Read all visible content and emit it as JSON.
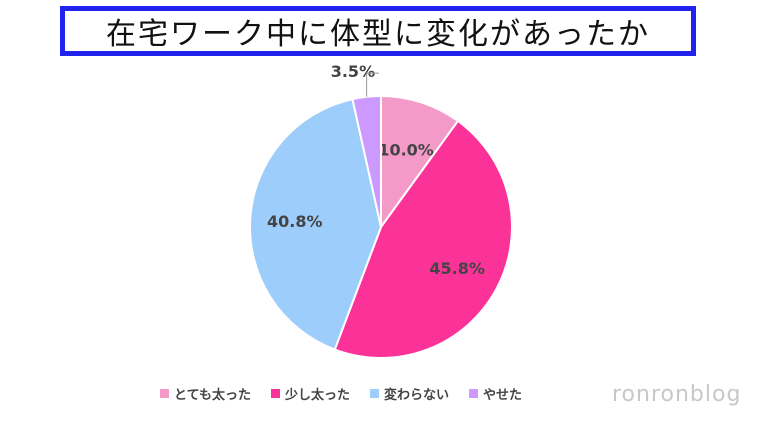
{
  "title": "在宅ワーク中に体型に変化があったか",
  "watermark": "ronronblog",
  "chart_data": {
    "type": "pie",
    "slices": [
      {
        "name": "とても太った",
        "value": 10.0,
        "label": "10.0%",
        "color": "#f49ac9"
      },
      {
        "name": "少し太った",
        "value": 45.8,
        "label": "45.8%",
        "color": "#fb3399"
      },
      {
        "name": "変わらない",
        "value": 40.8,
        "label": "40.8%",
        "color": "#9dcdfb"
      },
      {
        "name": "やせた",
        "value": 3.5,
        "label": "3.5%",
        "color": "#cc99ff"
      }
    ],
    "start": "top",
    "direction": "clockwise",
    "legend_position": "bottom"
  }
}
